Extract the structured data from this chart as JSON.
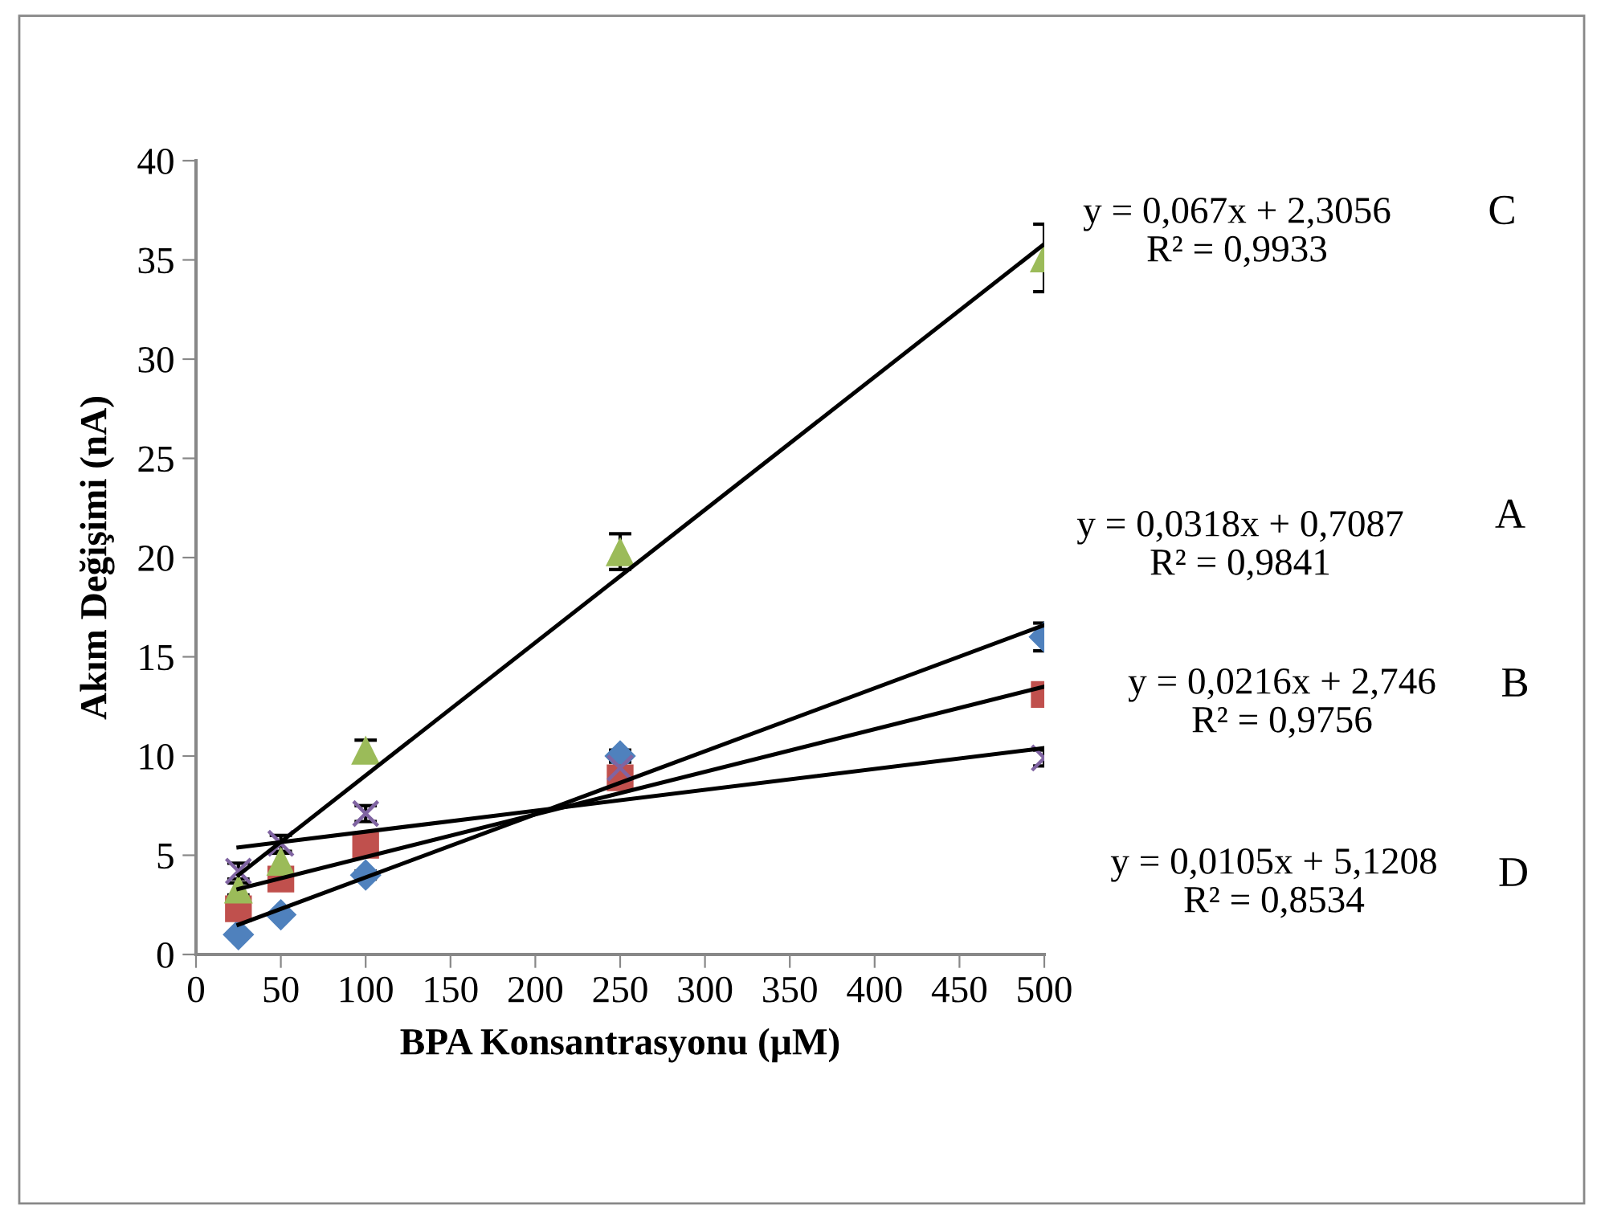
{
  "chart_data": {
    "type": "scatter",
    "xlabel": "BPA Konsantrasyonu (µM)",
    "ylabel": "Akım Değişimi (nA)",
    "xlim": [
      0,
      500
    ],
    "xticks": [
      0,
      50,
      100,
      150,
      200,
      250,
      300,
      350,
      400,
      450,
      500
    ],
    "ylim": [
      0,
      40
    ],
    "yticks": [
      0,
      5,
      10,
      15,
      20,
      25,
      30,
      35,
      40
    ],
    "grid": false,
    "legend": false,
    "series": [
      {
        "marker": "diamond",
        "color": "#4f81bd",
        "x": [
          25,
          50,
          100,
          250,
          500
        ],
        "values": [
          1.0,
          2.0,
          4.0,
          10.0,
          16.0
        ],
        "errors": [
          null,
          null,
          0.2,
          0.3,
          0.7
        ]
      },
      {
        "marker": "square",
        "color": "#c0504d",
        "x": [
          25,
          50,
          100,
          250,
          500
        ],
        "values": [
          2.3,
          3.8,
          5.5,
          8.9,
          13.1
        ],
        "errors": [
          null,
          0.2,
          0.3,
          0.3,
          0.3
        ]
      },
      {
        "marker": "triangle",
        "color": "#9bbb59",
        "x": [
          25,
          50,
          100,
          250,
          500
        ],
        "values": [
          3.3,
          4.7,
          10.3,
          20.3,
          35.1
        ],
        "errors": [
          0.3,
          0.4,
          0.5,
          0.9,
          1.7
        ]
      },
      {
        "marker": "cross",
        "color": "#8064a2",
        "x": [
          25,
          50,
          100,
          250,
          500
        ],
        "values": [
          4.2,
          5.6,
          7.1,
          9.4,
          9.9
        ],
        "errors": [
          0.4,
          0.4,
          0.4,
          0.3,
          0.4
        ]
      },
      {
        "type": "line",
        "color": "#000000",
        "x": [
          25,
          500
        ],
        "values": [
          1.5,
          16.6
        ]
      },
      {
        "type": "line",
        "color": "#000000",
        "x": [
          25,
          500
        ],
        "values": [
          3.3,
          13.5
        ]
      },
      {
        "type": "line",
        "color": "#000000",
        "x": [
          25,
          500
        ],
        "values": [
          4.0,
          35.8
        ]
      },
      {
        "type": "line",
        "color": "#000000",
        "x": [
          25,
          500
        ],
        "values": [
          5.4,
          10.4
        ]
      }
    ],
    "annotations": [
      "y = 0,067x + 2,3056\nR² = 0,9933",
      "C",
      "y = 0,0318x + 0,7087\nR² = 0,9841",
      "A",
      "y = 0,0216x + 2,746\nR² = 0,9756",
      "B",
      "y = 0,0105x + 5,1208\nR² = 0,8534",
      "D"
    ]
  }
}
